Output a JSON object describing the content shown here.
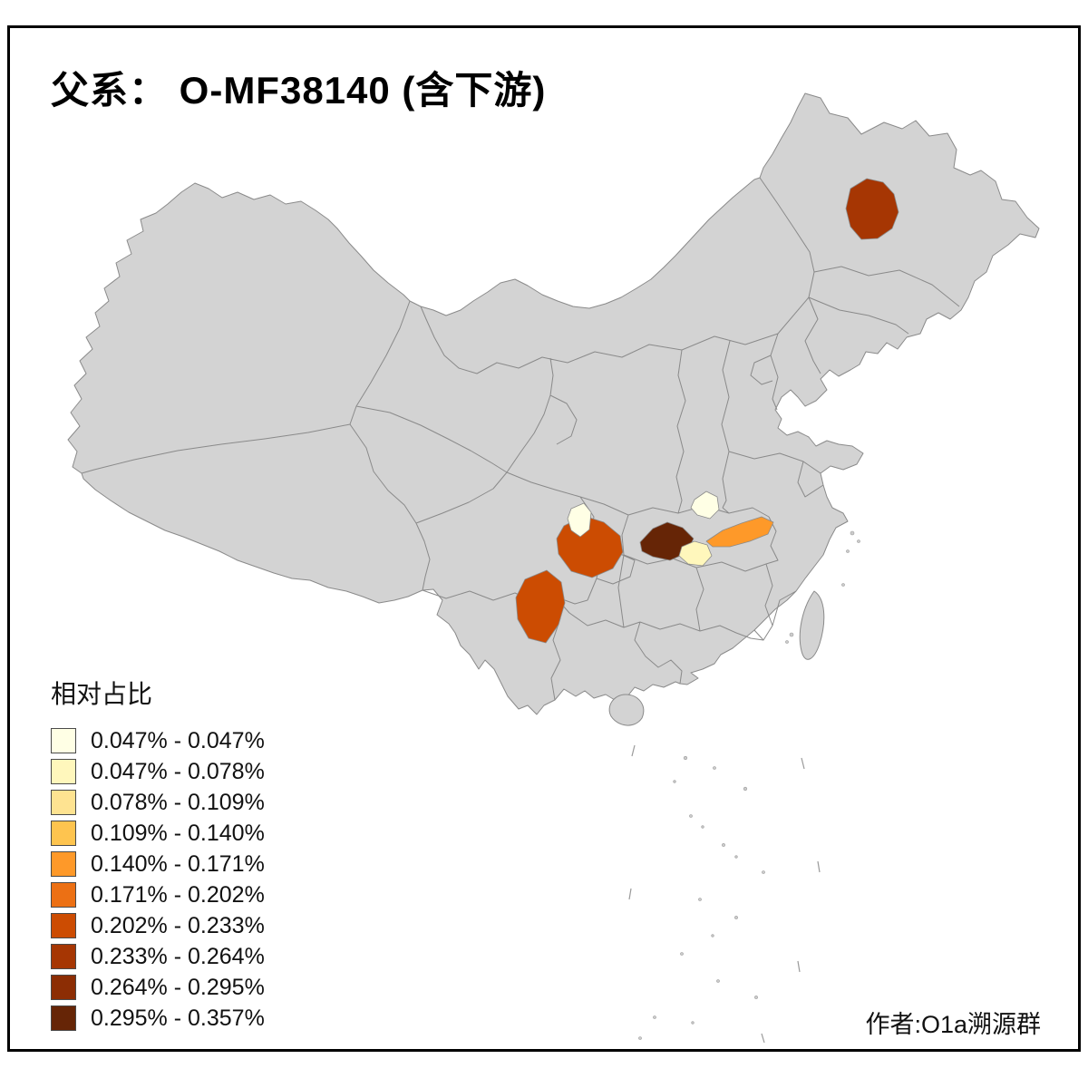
{
  "page": {
    "title": "父系： O-MF38140 (含下游)",
    "attribution": "作者:O1a溯源群"
  },
  "legend": {
    "title": "相对占比",
    "items": [
      {
        "label": "0.047% - 0.047%",
        "color": "#FFFFE5"
      },
      {
        "label": "0.047% - 0.078%",
        "color": "#FFF7BC"
      },
      {
        "label": "0.078% - 0.109%",
        "color": "#FEE391"
      },
      {
        "label": "0.109% - 0.140%",
        "color": "#FEC44F"
      },
      {
        "label": "0.140% - 0.171%",
        "color": "#FE9929"
      },
      {
        "label": "0.171% - 0.202%",
        "color": "#EC7014"
      },
      {
        "label": "0.202% - 0.233%",
        "color": "#CC4C02"
      },
      {
        "label": "0.233% - 0.264%",
        "color": "#A63603"
      },
      {
        "label": "0.264% - 0.295%",
        "color": "#8C2D04"
      },
      {
        "label": "0.295% - 0.357%",
        "color": "#662506"
      }
    ]
  },
  "map": {
    "land_color": "#D3D3D3",
    "border_color": "#8A8A8A",
    "sea_color": "#FFFFFF",
    "regions": [
      {
        "name": "northeast-heilongjiang",
        "color": "#A63603"
      },
      {
        "name": "sichuan-east",
        "color": "#CC4C02"
      },
      {
        "name": "yunnan-central",
        "color": "#CC4C02"
      },
      {
        "name": "hubei-southwest",
        "color": "#662506"
      },
      {
        "name": "hubei-east-band",
        "color": "#FE9929"
      },
      {
        "name": "henan-south-small",
        "color": "#FFFFE5"
      },
      {
        "name": "sichuan-northeast-small",
        "color": "#FFFFE5"
      },
      {
        "name": "hunan-north-small",
        "color": "#FFF7BC"
      }
    ]
  },
  "chart_data": {
    "type": "choropleth",
    "title": "父系： O-MF38140 (含下游)",
    "legend_title": "相对占比",
    "value_range": [
      "0.047%",
      "0.357%"
    ],
    "bins": [
      "0.047% - 0.047%",
      "0.047% - 0.078%",
      "0.078% - 0.109%",
      "0.109% - 0.140%",
      "0.140% - 0.171%",
      "0.171% - 0.202%",
      "0.202% - 0.233%",
      "0.233% - 0.264%",
      "0.264% - 0.295%",
      "0.295% - 0.357%"
    ],
    "bin_colors": [
      "#FFFFE5",
      "#FFF7BC",
      "#FEE391",
      "#FEC44F",
      "#FE9929",
      "#EC7014",
      "#CC4C02",
      "#A63603",
      "#8C2D04",
      "#662506"
    ],
    "highlighted_regions": [
      {
        "location": "central Heilongjiang (northeast)",
        "bin": "0.233% - 0.264%"
      },
      {
        "location": "eastern Sichuan",
        "bin": "0.202% - 0.233%"
      },
      {
        "location": "central Yunnan",
        "bin": "0.202% - 0.233%"
      },
      {
        "location": "southwestern Hubei",
        "bin": "0.295% - 0.357%"
      },
      {
        "location": "eastern Hubei band",
        "bin": "0.140% - 0.171%"
      },
      {
        "location": "south-central Henan (small)",
        "bin": "0.047% - 0.047%"
      },
      {
        "location": "northeastern Sichuan (small)",
        "bin": "0.047% - 0.047%"
      },
      {
        "location": "northern Hunan (small)",
        "bin": "0.047% - 0.078%"
      }
    ]
  }
}
